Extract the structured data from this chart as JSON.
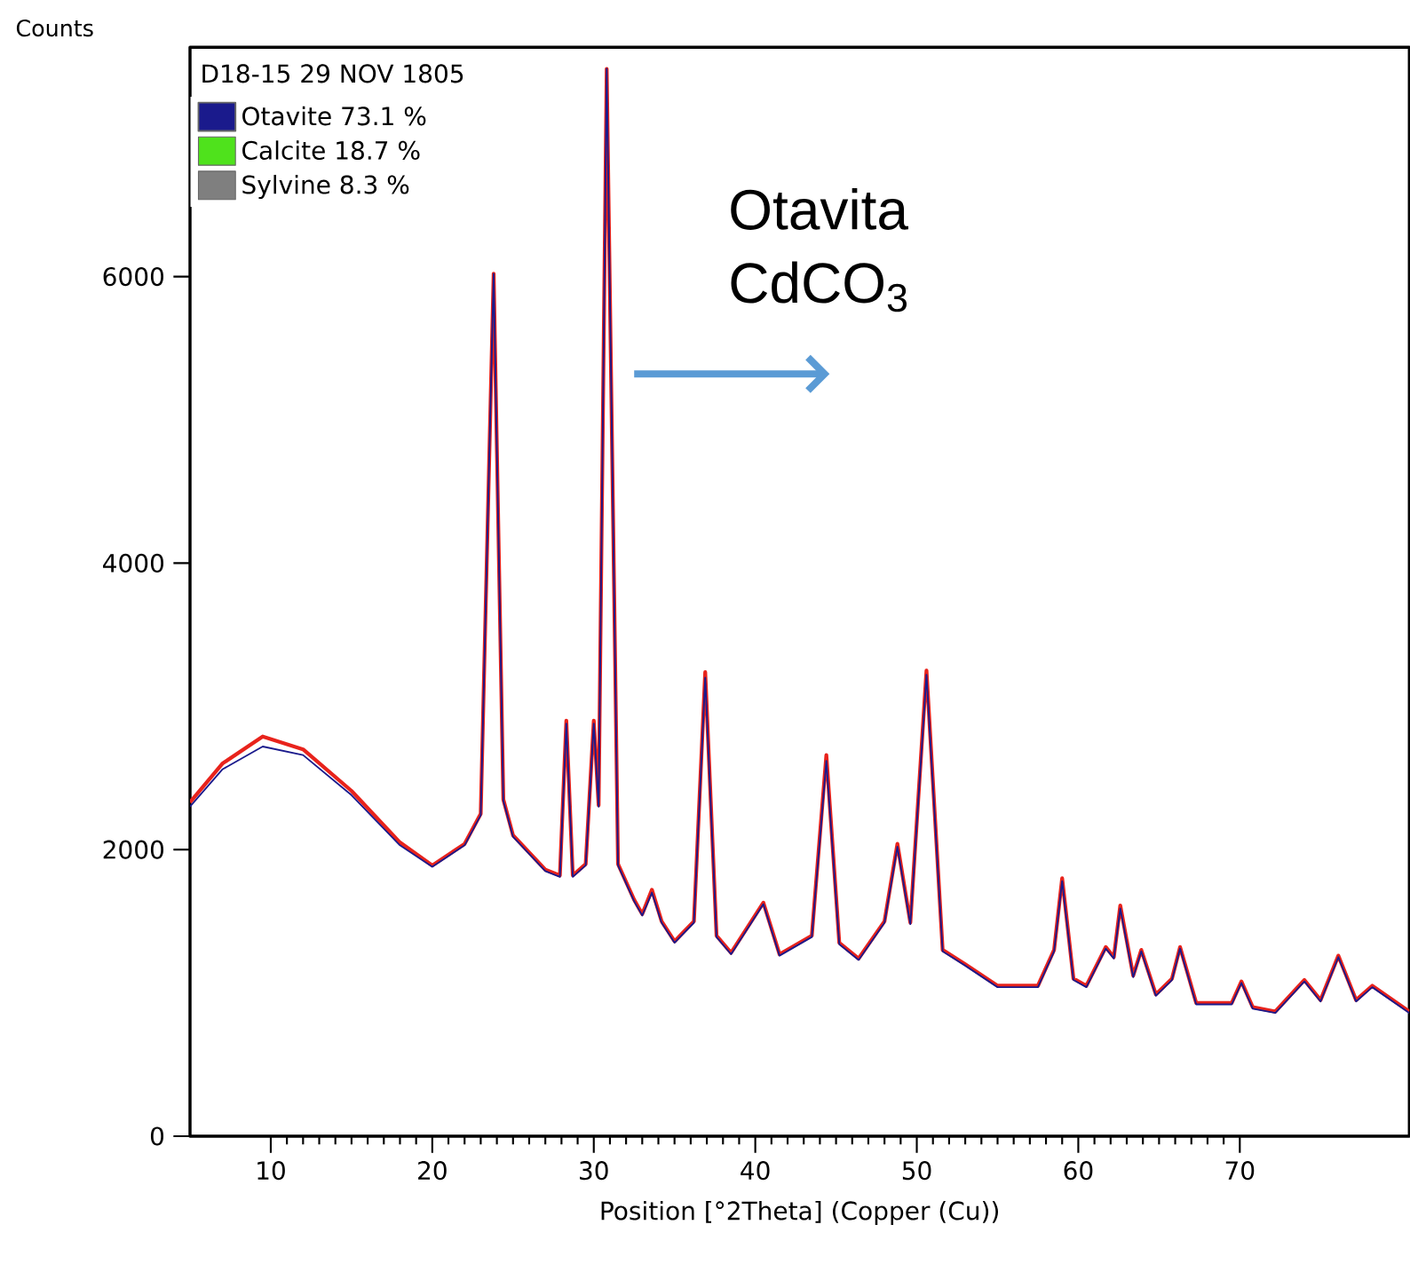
{
  "chart_data": {
    "type": "line",
    "legend_title": "D18-15 29 NOV 1805",
    "ylabel": "Counts",
    "xlabel": "Position [°2Theta] (Copper (Cu))",
    "annotations": [
      "Otavita CdCO$_{3}$"
    ],
    "x": [
      5,
      7,
      9.5,
      12,
      15,
      18,
      20,
      22,
      23,
      23.8,
      24.4,
      25,
      27,
      27.9,
      28.3,
      28.7,
      29.5,
      30,
      30.3,
      30.8,
      31.5,
      32.5,
      33,
      33.6,
      34.2,
      35,
      36.2,
      36.9,
      37.6,
      38.5,
      40.5,
      41.5,
      43.5,
      44.4,
      45.2,
      46.4,
      48,
      48.8,
      49.6,
      50.6,
      51.6,
      53,
      55,
      57.5,
      58.5,
      59,
      59.7,
      60.5,
      61.7,
      62.2,
      62.6,
      63.4,
      63.9,
      64.8,
      65.8,
      66.3,
      67.3,
      69.5,
      70.1,
      70.8,
      72.2,
      74,
      75,
      76.1,
      77.2,
      78.2,
      80.5
    ],
    "series": [
      {
        "color": "#e8231c",
        "values": [
          2330,
          2600,
          2790,
          2700,
          2410,
          2050,
          1890,
          2040,
          2250,
          6020,
          2350,
          2100,
          1860,
          1820,
          2900,
          1820,
          1900,
          2900,
          2310,
          7450,
          1900,
          1650,
          1550,
          1720,
          1500,
          1360,
          1500,
          3240,
          1400,
          1280,
          1630,
          1270,
          1400,
          2660,
          1350,
          1240,
          1500,
          2040,
          1490,
          3250,
          1300,
          1200,
          1050,
          1050,
          1300,
          1800,
          1100,
          1050,
          1320,
          1250,
          1610,
          1120,
          1300,
          990,
          1100,
          1320,
          930,
          930,
          1080,
          900,
          870,
          1090,
          950,
          1260,
          950,
          1050,
          870
        ]
      },
      {
        "name": "Otavite 73.1 %",
        "color": "#1a1a8c",
        "values": [
          2300,
          2560,
          2720,
          2660,
          2380,
          2030,
          1880,
          2030,
          2240,
          6020,
          2340,
          2090,
          1850,
          1810,
          2880,
          1810,
          1890,
          2880,
          2300,
          7450,
          1890,
          1640,
          1540,
          1700,
          1490,
          1350,
          1490,
          3200,
          1390,
          1270,
          1620,
          1260,
          1390,
          2620,
          1340,
          1230,
          1490,
          2020,
          1480,
          3220,
          1290,
          1190,
          1040,
          1040,
          1290,
          1780,
          1090,
          1040,
          1310,
          1240,
          1590,
          1110,
          1290,
          980,
          1090,
          1310,
          920,
          920,
          1070,
          890,
          860,
          1080,
          940,
          1250,
          940,
          1040,
          860
        ]
      },
      {
        "name": "Calcite 18.7 %",
        "color": "#4fe21c",
        "values": [
          null,
          null,
          null,
          null,
          null,
          null,
          null,
          null,
          null,
          null,
          null,
          null,
          null,
          null,
          null,
          null,
          null,
          null,
          null,
          null,
          null,
          null,
          null,
          null,
          null,
          null,
          null,
          null,
          null,
          null,
          null,
          null,
          null,
          null,
          null,
          null,
          null,
          null,
          null,
          null,
          null,
          null,
          null,
          null,
          null,
          null,
          null,
          null,
          null,
          null,
          null,
          null,
          null,
          null,
          null,
          null,
          null,
          null,
          null,
          null,
          null,
          null,
          null,
          null,
          null,
          null,
          null
        ]
      },
      {
        "name": "Sylvine 8.3 %",
        "color": "#7f7f7f",
        "values": [
          null,
          null,
          null,
          null,
          null,
          null,
          null,
          null,
          null,
          null,
          null,
          null,
          null,
          null,
          null,
          null,
          null,
          null,
          null,
          null,
          null,
          null,
          null,
          null,
          null,
          null,
          null,
          null,
          null,
          null,
          null,
          null,
          null,
          null,
          null,
          null,
          null,
          null,
          null,
          null,
          null,
          null,
          null,
          null,
          null,
          null,
          null,
          null,
          null,
          null,
          null,
          null,
          null,
          null,
          null,
          null,
          null,
          null,
          null,
          null,
          null,
          null,
          null,
          null,
          null,
          null,
          null
        ]
      }
    ],
    "xlim": [
      5,
      80.5
    ],
    "ylim": [
      0,
      7600
    ],
    "xticks": [
      10,
      20,
      30,
      40,
      50,
      60,
      70
    ],
    "yticks": [
      0,
      2000,
      4000,
      6000
    ],
    "grid": false,
    "legend": "top left",
    "line_style": "solid"
  }
}
